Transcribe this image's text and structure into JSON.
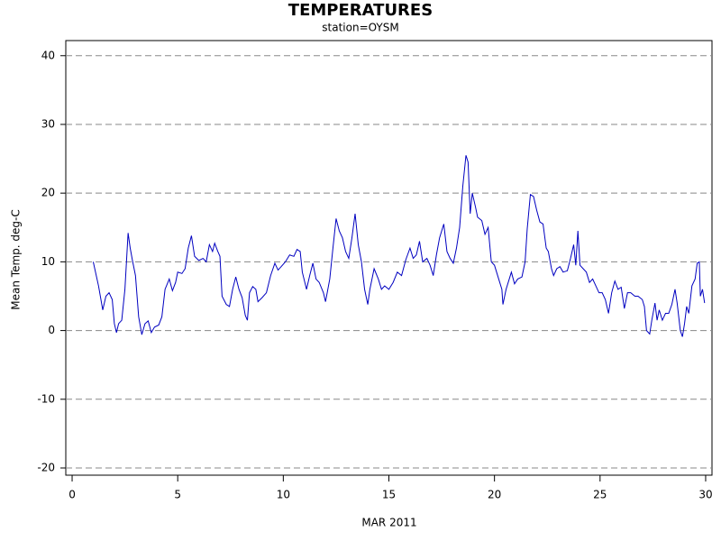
{
  "chart_data": {
    "type": "line",
    "title": "TEMPERATURES",
    "subtitle": "station=OYSM",
    "x_label": "MAR 2011",
    "y_label": "Mean Temp. deg-C",
    "xlim": [
      -0.3,
      30.3
    ],
    "xticks": [
      0,
      5,
      10,
      15,
      20,
      25,
      30
    ],
    "ylim": [
      -21.05,
      42.2
    ],
    "yticks": [
      -20,
      -10,
      0,
      10,
      20,
      30,
      40
    ],
    "grid": true,
    "x": [
      1.0,
      1.25,
      1.45,
      1.6,
      1.75,
      1.9,
      2.0,
      2.1,
      2.2,
      2.35,
      2.5,
      2.65,
      2.75,
      2.85,
      3.0,
      3.15,
      3.3,
      3.45,
      3.6,
      3.75,
      3.9,
      4.1,
      4.25,
      4.4,
      4.6,
      4.75,
      4.9,
      5.0,
      5.2,
      5.35,
      5.5,
      5.65,
      5.8,
      6.0,
      6.2,
      6.35,
      6.5,
      6.65,
      6.75,
      6.9,
      7.0,
      7.1,
      7.3,
      7.45,
      7.6,
      7.75,
      7.9,
      8.05,
      8.2,
      8.3,
      8.4,
      8.55,
      8.7,
      8.8,
      9.0,
      9.2,
      9.4,
      9.6,
      9.75,
      9.9,
      10.1,
      10.3,
      10.5,
      10.65,
      10.8,
      10.9,
      11.1,
      11.25,
      11.4,
      11.55,
      11.7,
      11.9,
      12.0,
      12.2,
      12.35,
      12.5,
      12.65,
      12.8,
      12.95,
      13.1,
      13.25,
      13.4,
      13.55,
      13.7,
      13.85,
      14.0,
      14.1,
      14.3,
      14.5,
      14.65,
      14.8,
      15.0,
      15.2,
      15.4,
      15.6,
      15.8,
      16.0,
      16.15,
      16.3,
      16.45,
      16.6,
      16.8,
      16.95,
      17.1,
      17.25,
      17.4,
      17.6,
      17.75,
      17.9,
      18.05,
      18.2,
      18.35,
      18.5,
      18.65,
      18.75,
      18.85,
      18.95,
      19.1,
      19.2,
      19.4,
      19.55,
      19.7,
      19.85,
      20.0,
      20.2,
      20.35,
      20.4,
      20.55,
      20.7,
      20.8,
      20.95,
      21.1,
      21.3,
      21.45,
      21.55,
      21.7,
      21.85,
      22.0,
      22.15,
      22.3,
      22.45,
      22.55,
      22.7,
      22.8,
      22.95,
      23.1,
      23.25,
      23.45,
      23.6,
      23.75,
      23.85,
      23.95,
      24.05,
      24.2,
      24.35,
      24.5,
      24.65,
      24.8,
      24.95,
      25.1,
      25.25,
      25.4,
      25.55,
      25.7,
      25.85,
      26.0,
      26.15,
      26.3,
      26.45,
      26.65,
      26.8,
      27.0,
      27.1,
      27.2,
      27.35,
      27.45,
      27.6,
      27.7,
      27.8,
      27.95,
      28.1,
      28.25,
      28.4,
      28.55,
      28.65,
      28.8,
      28.9,
      29.0,
      29.1,
      29.2,
      29.35,
      29.5,
      29.6,
      29.7,
      29.75,
      29.85,
      29.95
    ],
    "series": [
      {
        "name": "Mean Temp.",
        "color": "#0000c0",
        "values": [
          10,
          6.5,
          3,
          5,
          5.5,
          4.5,
          1,
          -0.3,
          1,
          1.5,
          6,
          14.2,
          12,
          10.3,
          8,
          2,
          -0.6,
          1,
          1.4,
          -0.3,
          0.5,
          0.8,
          2,
          6,
          7.5,
          5.8,
          7,
          8.5,
          8.3,
          9,
          12,
          13.8,
          10.8,
          10.2,
          10.5,
          10,
          12.5,
          11.5,
          12.7,
          11.5,
          10.8,
          5,
          3.8,
          3.5,
          6,
          7.8,
          6,
          4.8,
          2.2,
          1.5,
          5.5,
          6.4,
          6,
          4.2,
          4.8,
          5.5,
          8,
          9.8,
          8.8,
          9.3,
          10,
          11,
          10.8,
          11.8,
          11.5,
          8.5,
          6,
          8,
          9.8,
          7.5,
          7,
          5.5,
          4.2,
          7.5,
          12,
          16.3,
          14.5,
          13.5,
          11.5,
          10.5,
          13.5,
          17,
          12.5,
          10,
          6,
          3.8,
          6,
          9,
          7.5,
          6,
          6.5,
          6,
          7,
          8.5,
          8,
          10.3,
          12,
          10.5,
          11,
          13,
          10,
          10.5,
          9.5,
          8,
          11,
          13.5,
          15.5,
          11.5,
          10.5,
          9.8,
          12,
          15,
          21,
          25.5,
          24.5,
          17,
          20,
          18,
          16.5,
          16,
          14,
          15,
          10,
          9.5,
          7.5,
          6,
          3.8,
          6,
          7.5,
          8.5,
          6.8,
          7.5,
          7.8,
          10,
          14.8,
          19.8,
          19.5,
          17.5,
          15.8,
          15.5,
          12,
          11.5,
          9,
          8,
          9,
          9.3,
          8.5,
          8.7,
          10.5,
          12.5,
          9.5,
          14.5,
          9.5,
          9,
          8.5,
          7,
          7.5,
          6.5,
          5.5,
          5.5,
          4.5,
          2.5,
          5.5,
          7.2,
          6,
          6.3,
          3.2,
          5.5,
          5.5,
          5,
          5,
          4.5,
          3.5,
          0,
          -0.5,
          1.5,
          4,
          1.5,
          3,
          1.5,
          2.5,
          2.5,
          3.8,
          6,
          4,
          0,
          -0.9,
          1,
          3.5,
          2.5,
          6.5,
          7.5,
          9.8,
          10,
          5,
          6,
          4
        ]
      }
    ]
  }
}
